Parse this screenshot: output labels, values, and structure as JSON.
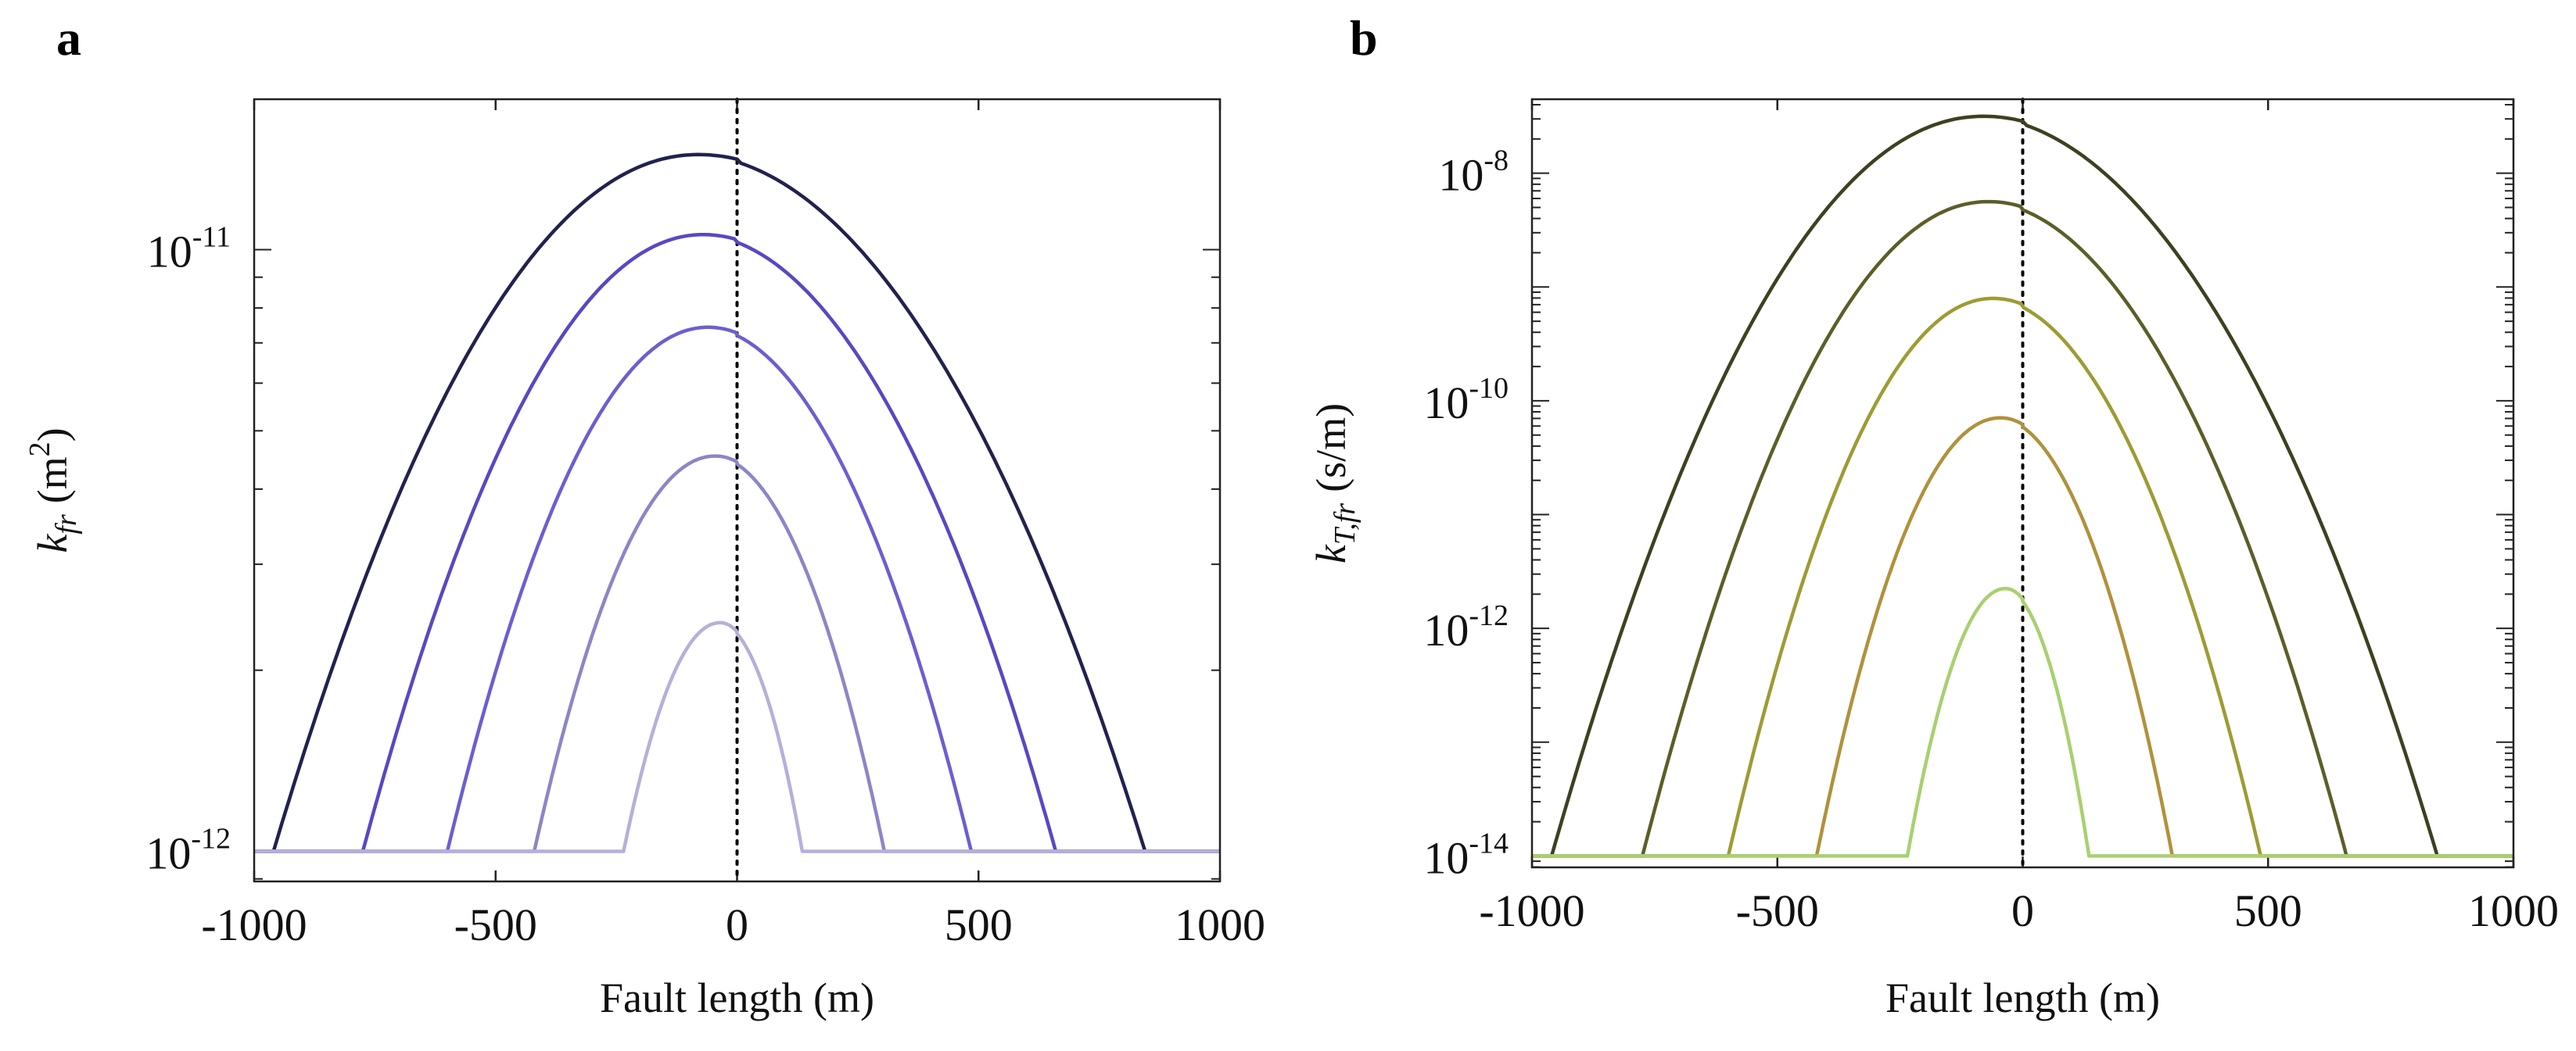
{
  "panels": [
    {
      "label": "a",
      "chart_data": {
        "type": "line",
        "title": "",
        "xlabel": "Fault length (m)",
        "ylabel": {
          "base": "k",
          "sub": "fr",
          "unit": "(m",
          "unit_exp": "2",
          "unit_end": ")"
        },
        "xlim": [
          -1000,
          1000
        ],
        "ylim_log10": [
          -12.05,
          -10.75
        ],
        "yscale": "log",
        "xticks": [
          -1000,
          -500,
          0,
          500,
          1000
        ],
        "xtick_labels": [
          "-1000",
          "-500",
          "0",
          "500",
          "1000"
        ],
        "yticks_major": [
          {
            "value_log10": -12,
            "base": "10",
            "exp": "-12"
          },
          {
            "value_log10": -11,
            "base": "10",
            "exp": "-11"
          }
        ],
        "vline_x": 0,
        "baseline_log10": -12,
        "series": [
          {
            "name": "curve-1",
            "color": "#22224f",
            "x_start": -960,
            "x_end": 845,
            "peak_x": -80,
            "peak_log10": -10.842
          },
          {
            "name": "curve-2",
            "color": "#5848c2",
            "x_start": -775,
            "x_end": 660,
            "peak_x": -70,
            "peak_log10": -10.975
          },
          {
            "name": "curve-3",
            "color": "#6b5fd0",
            "x_start": -600,
            "x_end": 485,
            "peak_x": -60,
            "peak_log10": -11.129
          },
          {
            "name": "curve-4",
            "color": "#8c86c6",
            "x_start": -420,
            "x_end": 305,
            "peak_x": -45,
            "peak_log10": -11.343
          },
          {
            "name": "curve-5",
            "color": "#b6b0d8",
            "x_start": -235,
            "x_end": 135,
            "peak_x": -35,
            "peak_log10": -11.62
          }
        ]
      }
    },
    {
      "label": "b",
      "chart_data": {
        "type": "line",
        "title": "",
        "xlabel": "Fault length (m)",
        "ylabel": {
          "base": "k",
          "sub": "T,fr",
          "unit": "(s/m)"
        },
        "xlim": [
          -1000,
          1000
        ],
        "ylim_log10": [
          -14.1,
          -7.35
        ],
        "yscale": "log",
        "xticks": [
          -1000,
          -500,
          0,
          500,
          1000
        ],
        "xtick_labels": [
          "-1000",
          "-500",
          "0",
          "500",
          "1000"
        ],
        "yticks_major": [
          {
            "value_log10": -14,
            "base": "10",
            "exp": "-14"
          },
          {
            "value_log10": -12,
            "base": "10",
            "exp": "-12"
          },
          {
            "value_log10": -10,
            "base": "10",
            "exp": "-10"
          },
          {
            "value_log10": -8,
            "base": "10",
            "exp": "-8"
          }
        ],
        "vline_x": 0,
        "baseline_log10": -14,
        "series": [
          {
            "name": "curve-1",
            "color": "#3f4020",
            "x_start": -960,
            "x_end": 845,
            "peak_x": -80,
            "peak_log10": -7.5
          },
          {
            "name": "curve-2",
            "color": "#5c5e28",
            "x_start": -775,
            "x_end": 660,
            "peak_x": -70,
            "peak_log10": -8.25
          },
          {
            "name": "curve-3",
            "color": "#9c9c34",
            "x_start": -600,
            "x_end": 485,
            "peak_x": -60,
            "peak_log10": -9.1
          },
          {
            "name": "curve-4",
            "color": "#b0923c",
            "x_start": -420,
            "x_end": 305,
            "peak_x": -45,
            "peak_log10": -10.15
          },
          {
            "name": "curve-5",
            "color": "#a8d070",
            "x_start": -235,
            "x_end": 135,
            "peak_x": -35,
            "peak_log10": -11.65
          }
        ]
      }
    }
  ]
}
